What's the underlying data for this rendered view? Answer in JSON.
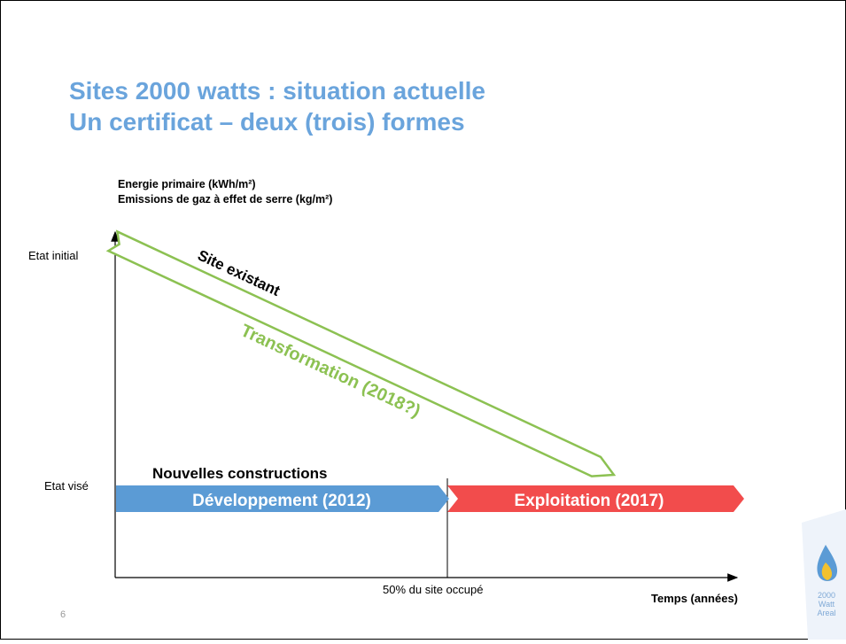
{
  "header": {
    "title_line1": "Sites 2000 watts : situation actuelle",
    "title_line2": "Un certificat – deux (trois) formes"
  },
  "axes": {
    "y_label_line1": "Energie primaire (kWh/m²)",
    "y_label_line2": "Emissions de gaz à effet de serre (kg/m²)",
    "y_initial": "Etat initial",
    "y_target": "Etat visé",
    "x_label": "Temps (années)",
    "x_marker": "50% du site occupé"
  },
  "existing": {
    "label": "Site existant",
    "arrow": "Transformation (2018?)"
  },
  "new": {
    "label": "Nouvelles constructions",
    "phase1": "Développement (2012)",
    "phase2": "Exploitation (2017)"
  },
  "footer": {
    "page": "6",
    "logo_line1": "2000",
    "logo_line2": "Watt",
    "logo_line3": "Areal"
  }
}
